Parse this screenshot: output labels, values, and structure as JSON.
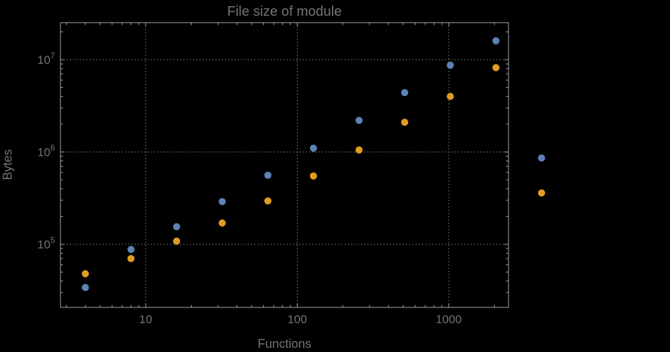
{
  "chart": {
    "title": "File size of module",
    "xlabel": "Functions",
    "ylabel": "Bytes"
  },
  "colors": {
    "background": "#000000",
    "frame": "#a8a8a8",
    "grid": "#8d8d8d",
    "text": "#737373",
    "series1": "#5e81b5",
    "series2": "#e19c24"
  },
  "chart_data": {
    "type": "scatter",
    "title": "File size of module",
    "xlabel": "Functions",
    "ylabel": "Bytes",
    "x_scale": "log",
    "y_scale": "log",
    "grid": "dotted",
    "legend": "none",
    "x_range": [
      2.74,
      2480
    ],
    "y_range": [
      20700,
      25200000
    ],
    "x_ticks": [
      {
        "value": 10,
        "label": "10"
      },
      {
        "value": 100,
        "label": "100"
      },
      {
        "value": 1000,
        "label": "1000"
      }
    ],
    "y_ticks": [
      {
        "value": 100000,
        "base": "10",
        "exp": "5"
      },
      {
        "value": 1000000,
        "base": "10",
        "exp": "6"
      },
      {
        "value": 10000000,
        "base": "10",
        "exp": "7"
      }
    ],
    "series": [
      {
        "name": "series-1",
        "color": "#5e81b5",
        "points": [
          [
            4,
            34000
          ],
          [
            8,
            88000
          ],
          [
            16,
            155000
          ],
          [
            32,
            290000
          ],
          [
            64,
            560000
          ],
          [
            128,
            1100000
          ],
          [
            256,
            2200000
          ],
          [
            512,
            4400000
          ],
          [
            1024,
            8700000
          ],
          [
            2048,
            16000000
          ],
          [
            4096,
            860000
          ]
        ]
      },
      {
        "name": "series-2",
        "color": "#e19c24",
        "points": [
          [
            4,
            48000
          ],
          [
            8,
            70000
          ],
          [
            16,
            108000
          ],
          [
            32,
            170000
          ],
          [
            64,
            295000
          ],
          [
            128,
            550000
          ],
          [
            256,
            1050000
          ],
          [
            512,
            2100000
          ],
          [
            1024,
            4000000
          ],
          [
            2048,
            8200000
          ],
          [
            4096,
            360000
          ]
        ]
      }
    ]
  }
}
